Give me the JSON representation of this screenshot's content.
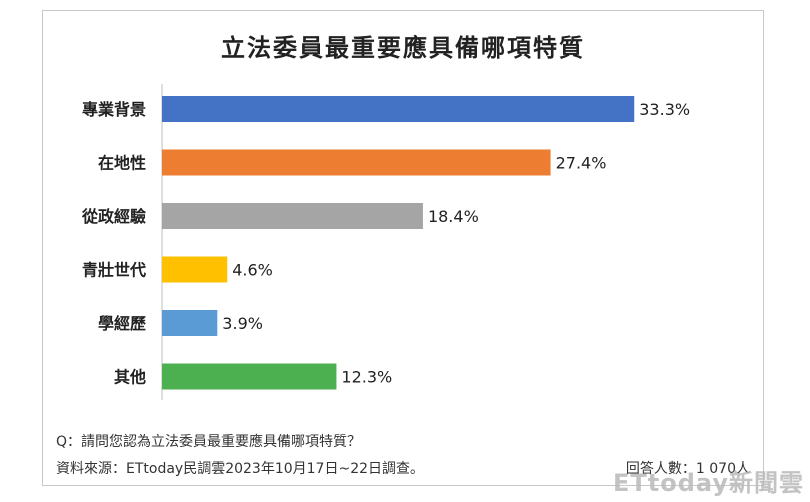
{
  "chart_data": {
    "type": "bar",
    "orientation": "horizontal",
    "title": "立法委員最重要應具備哪項特質",
    "categories": [
      "專業背景",
      "在地性",
      "從政經驗",
      "青壯世代",
      "學經歷",
      "其他"
    ],
    "values": [
      33.3,
      27.4,
      18.4,
      4.6,
      3.9,
      12.3
    ],
    "value_labels": [
      "33.3%",
      "27.4%",
      "18.4%",
      "4.6%",
      "3.9%",
      "12.3%"
    ],
    "colors": [
      "#4472c4",
      "#ed7d31",
      "#a5a5a5",
      "#ffc000",
      "#5b9bd5",
      "#4caf50"
    ],
    "xlim": [
      0,
      38.5
    ],
    "xlabel": "",
    "ylabel": ""
  },
  "notes": {
    "question": "Q：請問您認為立法委員最重要應具備哪項特質？",
    "source": "資料來源：ETtoday民調雲2023年10月17日~22日調查。",
    "respondents": "回答人數：1 070人"
  },
  "watermark": "ETtoday新聞雲"
}
